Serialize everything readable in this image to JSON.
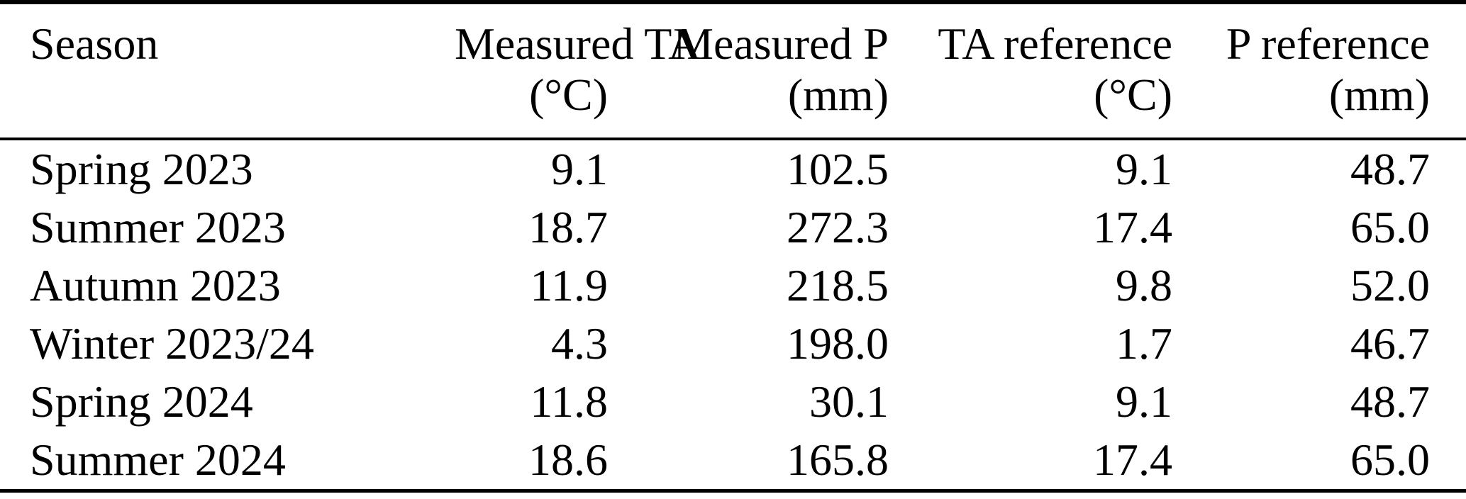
{
  "colors": {
    "background": "#ffffff",
    "text": "#000000",
    "rule": "#000000"
  },
  "table": {
    "columns": [
      {
        "key": "season",
        "label": "Season",
        "unit": ""
      },
      {
        "key": "measured_ta",
        "label": "Measured TA",
        "unit": "(°C)"
      },
      {
        "key": "measured_p",
        "label": "Measured P",
        "unit": "(mm)"
      },
      {
        "key": "ta_reference",
        "label": "TA reference",
        "unit": "(°C)"
      },
      {
        "key": "p_reference",
        "label": "P reference",
        "unit": "(mm)"
      }
    ],
    "rows": [
      {
        "season": "Spring 2023",
        "measured_ta": "9.1",
        "measured_p": "102.5",
        "ta_reference": "9.1",
        "p_reference": "48.7"
      },
      {
        "season": "Summer 2023",
        "measured_ta": "18.7",
        "measured_p": "272.3",
        "ta_reference": "17.4",
        "p_reference": "65.0"
      },
      {
        "season": "Autumn 2023",
        "measured_ta": "11.9",
        "measured_p": "218.5",
        "ta_reference": "9.8",
        "p_reference": "52.0"
      },
      {
        "season": "Winter 2023/24",
        "measured_ta": "4.3",
        "measured_p": "198.0",
        "ta_reference": "1.7",
        "p_reference": "46.7"
      },
      {
        "season": "Spring 2024",
        "measured_ta": "11.8",
        "measured_p": "30.1",
        "ta_reference": "9.1",
        "p_reference": "48.7"
      },
      {
        "season": "Summer 2024",
        "measured_ta": "18.6",
        "measured_p": "165.8",
        "ta_reference": "17.4",
        "p_reference": "65.0"
      }
    ]
  }
}
